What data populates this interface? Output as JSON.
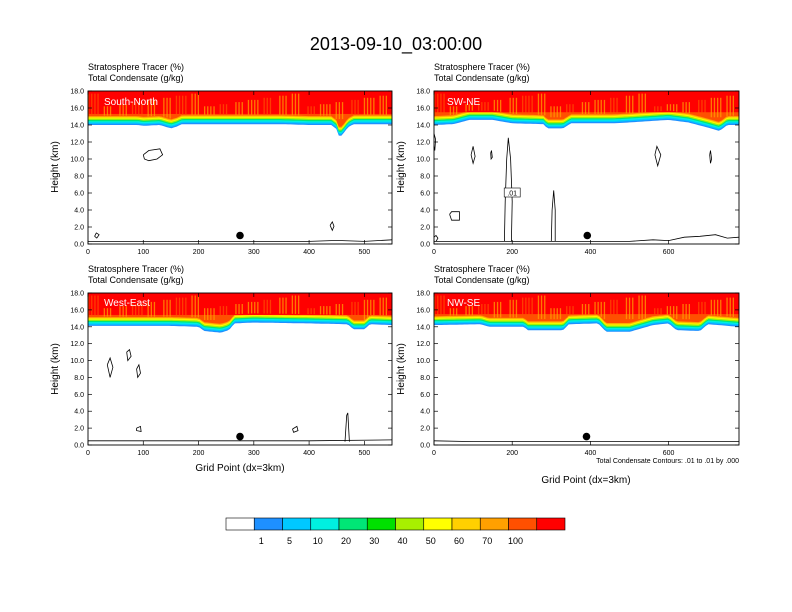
{
  "title": "2013-09-10_03:00:00",
  "palette": [
    "#ffffff",
    "#1e90ff",
    "#00c8ff",
    "#00f0e0",
    "#00e676",
    "#00e000",
    "#a8f000",
    "#ffff00",
    "#ffd000",
    "#ffa000",
    "#ff5000",
    "#ff0000"
  ],
  "contour_color": "#000000",
  "marker_color": "#000000",
  "chart_data": [
    {
      "type": "heatmap",
      "panel": "South-North",
      "subtitle_1": "Stratosphere Tracer   (%)",
      "subtitle_2": "Total Condensate   (g/kg)",
      "ylabel": "Height (km)",
      "xlabel": "",
      "xlim": [
        0,
        550
      ],
      "ylim": [
        0,
        18
      ],
      "xticks": [
        "0",
        "100",
        "200",
        "300",
        "400",
        "500"
      ],
      "xtick_values": [
        0,
        100,
        200,
        300,
        400,
        500
      ],
      "yticks": [
        "0.0",
        "2.0",
        "4.0",
        "6.0",
        "8.0",
        "10.0",
        "12.0",
        "14.0",
        "16.0",
        "18.0"
      ],
      "ytick_values": [
        0,
        2,
        4,
        6,
        8,
        10,
        12,
        14,
        16,
        18
      ],
      "tracer_top_100_km": 15.3,
      "tropopause_km": [
        [
          0,
          14.0
        ],
        [
          90,
          14.0
        ],
        [
          100,
          13.9
        ],
        [
          130,
          14.0
        ],
        [
          150,
          13.6
        ],
        [
          160,
          13.8
        ],
        [
          170,
          14.1
        ],
        [
          250,
          14.1
        ],
        [
          300,
          14.1
        ],
        [
          350,
          14.1
        ],
        [
          400,
          14.0
        ],
        [
          440,
          14.0
        ],
        [
          450,
          13.5
        ],
        [
          455,
          12.5
        ],
        [
          462,
          13.0
        ],
        [
          470,
          13.7
        ],
        [
          480,
          14.1
        ],
        [
          550,
          14.1
        ]
      ],
      "condensate_contours": [
        [
          [
            100,
            10.5
          ],
          [
            110,
            11.0
          ],
          [
            130,
            11.2
          ],
          [
            135,
            10.5
          ],
          [
            125,
            10.0
          ],
          [
            110,
            9.8
          ],
          [
            102,
            10.0
          ],
          [
            100,
            10.5
          ]
        ],
        [
          [
            12,
            0.9
          ],
          [
            15,
            1.3
          ],
          [
            20,
            1.1
          ],
          [
            16,
            0.7
          ],
          [
            12,
            0.9
          ]
        ],
        [
          [
            438,
            2.2
          ],
          [
            442,
            2.6
          ],
          [
            445,
            2.1
          ],
          [
            442,
            1.6
          ],
          [
            438,
            2.2
          ]
        ],
        [
          [
            0,
            0.3
          ],
          [
            10,
            0.3
          ],
          [
            20,
            0.3
          ],
          [
            40,
            0.3
          ],
          [
            60,
            0.3
          ],
          [
            100,
            0.3
          ],
          [
            200,
            0.3
          ],
          [
            300,
            0.3
          ],
          [
            400,
            0.3
          ],
          [
            440,
            0.4
          ],
          [
            460,
            0.4
          ],
          [
            500,
            0.3
          ],
          [
            550,
            0.5
          ]
        ]
      ],
      "marker": {
        "x": 275,
        "y": 1.0
      },
      "label": ""
    },
    {
      "type": "heatmap",
      "panel": "SW-NE",
      "subtitle_1": "Stratosphere Tracer   (%)",
      "subtitle_2": "Total Condensate   (g/kg)",
      "ylabel": "Height (km)",
      "xlabel": "",
      "xlim": [
        0,
        780
      ],
      "ylim": [
        0,
        18
      ],
      "xticks": [
        "0",
        "200",
        "400",
        "600"
      ],
      "xtick_values": [
        0,
        200,
        400,
        600
      ],
      "yticks": [
        "0.0",
        "2.0",
        "4.0",
        "6.0",
        "8.0",
        "10.0",
        "12.0",
        "14.0",
        "16.0",
        "18.0"
      ],
      "ytick_values": [
        0,
        2,
        4,
        6,
        8,
        10,
        12,
        14,
        16,
        18
      ],
      "tracer_top_100_km": 15.5,
      "tropopause_km": [
        [
          0,
          14.0
        ],
        [
          50,
          14.1
        ],
        [
          90,
          14.6
        ],
        [
          150,
          14.6
        ],
        [
          200,
          14.2
        ],
        [
          280,
          14.1
        ],
        [
          290,
          13.6
        ],
        [
          330,
          13.6
        ],
        [
          350,
          14.2
        ],
        [
          400,
          14.2
        ],
        [
          460,
          14.2
        ],
        [
          500,
          14.3
        ],
        [
          600,
          14.6
        ],
        [
          650,
          14.3
        ],
        [
          700,
          13.7
        ],
        [
          730,
          13.3
        ],
        [
          750,
          14.0
        ],
        [
          780,
          14.0
        ]
      ],
      "condensate_contours": [
        [
          [
            180,
            0.3
          ],
          [
            182,
            5.0
          ],
          [
            186,
            10.0
          ],
          [
            190,
            12.5
          ],
          [
            196,
            10.0
          ],
          [
            200,
            5.0
          ],
          [
            198,
            0.3
          ]
        ],
        [
          [
            300,
            0.3
          ],
          [
            302,
            4.0
          ],
          [
            306,
            6.3
          ],
          [
            310,
            4.0
          ],
          [
            310,
            0.3
          ]
        ],
        [
          [
            95,
            10.5
          ],
          [
            100,
            11.5
          ],
          [
            105,
            10.3
          ],
          [
            100,
            9.5
          ],
          [
            95,
            10.5
          ]
        ],
        [
          [
            145,
            10.7
          ],
          [
            147,
            11.0
          ],
          [
            149,
            10.2
          ],
          [
            146,
            10.0
          ],
          [
            145,
            10.7
          ]
        ],
        [
          [
            40,
            3.5
          ],
          [
            45,
            3.8
          ],
          [
            65,
            3.8
          ],
          [
            65,
            2.8
          ],
          [
            45,
            2.8
          ],
          [
            40,
            3.5
          ]
        ],
        [
          [
            565,
            10.5
          ],
          [
            570,
            11.5
          ],
          [
            580,
            10.5
          ],
          [
            572,
            9.2
          ],
          [
            565,
            10.5
          ]
        ],
        [
          [
            705,
            10.5
          ],
          [
            707,
            11.0
          ],
          [
            710,
            10.0
          ],
          [
            707,
            9.5
          ],
          [
            705,
            10.5
          ]
        ],
        [
          [
            0,
            13.0
          ],
          [
            4,
            12.3
          ],
          [
            2,
            11.0
          ],
          [
            0,
            11.5
          ]
        ],
        [
          [
            0,
            0.8
          ],
          [
            5,
            1.0
          ],
          [
            10,
            0.7
          ],
          [
            5,
            0.3
          ]
        ],
        [
          [
            0,
            0.3
          ],
          [
            100,
            0.3
          ],
          [
            300,
            0.3
          ],
          [
            500,
            0.3
          ],
          [
            560,
            0.5
          ],
          [
            600,
            0.4
          ],
          [
            640,
            0.8
          ],
          [
            680,
            0.9
          ],
          [
            720,
            1.1
          ],
          [
            750,
            0.7
          ],
          [
            780,
            0.8
          ]
        ]
      ],
      "marker": {
        "x": 392,
        "y": 1.0
      },
      "label": ".01",
      "label_pos": {
        "x": 200,
        "y": 6.0
      }
    },
    {
      "type": "heatmap",
      "panel": "West-East",
      "subtitle_1": "Stratosphere Tracer   (%)",
      "subtitle_2": "Total Condensate   (g/kg)",
      "ylabel": "Height (km)",
      "xlabel": "Grid Point (dx=3km)",
      "xlim": [
        0,
        550
      ],
      "ylim": [
        0,
        18
      ],
      "xticks": [
        "0",
        "100",
        "200",
        "300",
        "400",
        "500"
      ],
      "xtick_values": [
        0,
        100,
        200,
        300,
        400,
        500
      ],
      "yticks": [
        "0.0",
        "2.0",
        "4.0",
        "6.0",
        "8.0",
        "10.0",
        "12.0",
        "14.0",
        "16.0",
        "18.0"
      ],
      "ytick_values": [
        0,
        2,
        4,
        6,
        8,
        10,
        12,
        14,
        16,
        18
      ],
      "tracer_top_100_km": 15.4,
      "tropopause_km": [
        [
          0,
          14.1
        ],
        [
          150,
          14.1
        ],
        [
          200,
          14.0
        ],
        [
          210,
          13.5
        ],
        [
          240,
          13.3
        ],
        [
          255,
          13.6
        ],
        [
          265,
          14.4
        ],
        [
          300,
          14.5
        ],
        [
          400,
          14.4
        ],
        [
          470,
          14.3
        ],
        [
          480,
          13.7
        ],
        [
          500,
          13.7
        ],
        [
          510,
          14.3
        ],
        [
          550,
          14.2
        ]
      ],
      "condensate_contours": [
        [
          [
            35,
            9.5
          ],
          [
            40,
            10.3
          ],
          [
            45,
            9.2
          ],
          [
            40,
            8.0
          ],
          [
            35,
            9.5
          ]
        ],
        [
          [
            70,
            11.0
          ],
          [
            75,
            11.3
          ],
          [
            78,
            10.5
          ],
          [
            72,
            10.0
          ],
          [
            70,
            11.0
          ]
        ],
        [
          [
            88,
            9.0
          ],
          [
            92,
            9.5
          ],
          [
            95,
            8.5
          ],
          [
            90,
            8.0
          ],
          [
            88,
            9.0
          ]
        ],
        [
          [
            88,
            2.0
          ],
          [
            95,
            2.2
          ],
          [
            96,
            1.6
          ],
          [
            88,
            1.7
          ],
          [
            88,
            2.0
          ]
        ],
        [
          [
            370,
            1.9
          ],
          [
            378,
            2.2
          ],
          [
            380,
            1.7
          ],
          [
            372,
            1.5
          ],
          [
            370,
            1.9
          ]
        ],
        [
          [
            465,
            0.4
          ],
          [
            468,
            3.5
          ],
          [
            470,
            3.8
          ],
          [
            473,
            0.4
          ]
        ],
        [
          [
            0,
            0.5
          ],
          [
            100,
            0.5
          ],
          [
            200,
            0.5
          ],
          [
            300,
            0.5
          ],
          [
            400,
            0.5
          ],
          [
            550,
            0.6
          ]
        ]
      ],
      "marker": {
        "x": 275,
        "y": 1.0
      },
      "label": ""
    },
    {
      "type": "heatmap",
      "panel": "NW-SE",
      "subtitle_1": "Stratosphere Tracer   (%)",
      "subtitle_2": "Total Condensate   (g/kg)",
      "ylabel": "Height (km)",
      "xlabel": "Grid Point (dx=3km)",
      "xlim": [
        0,
        780
      ],
      "ylim": [
        0,
        18
      ],
      "xticks": [
        "0",
        "200",
        "400",
        "600"
      ],
      "xtick_values": [
        0,
        200,
        400,
        600
      ],
      "yticks": [
        "0.0",
        "2.0",
        "4.0",
        "6.0",
        "8.0",
        "10.0",
        "12.0",
        "14.0",
        "16.0",
        "18.0"
      ],
      "ytick_values": [
        0,
        2,
        4,
        6,
        8,
        10,
        12,
        14,
        16,
        18
      ],
      "tracer_top_100_km": 15.5,
      "tropopause_km": [
        [
          0,
          14.2
        ],
        [
          120,
          14.3
        ],
        [
          140,
          14.0
        ],
        [
          230,
          14.0
        ],
        [
          240,
          13.6
        ],
        [
          330,
          13.6
        ],
        [
          345,
          14.3
        ],
        [
          420,
          14.4
        ],
        [
          440,
          13.4
        ],
        [
          480,
          13.4
        ],
        [
          500,
          13.4
        ],
        [
          560,
          14.2
        ],
        [
          600,
          14.4
        ],
        [
          620,
          13.6
        ],
        [
          680,
          13.5
        ],
        [
          700,
          14.3
        ],
        [
          780,
          14.0
        ]
      ],
      "condensate_contours": [
        [
          [
            0,
            0.5
          ],
          [
            100,
            0.4
          ],
          [
            200,
            0.4
          ],
          [
            300,
            0.4
          ],
          [
            400,
            0.4
          ],
          [
            500,
            0.4
          ],
          [
            600,
            0.4
          ],
          [
            700,
            0.4
          ],
          [
            780,
            0.4
          ]
        ]
      ],
      "marker": {
        "x": 390,
        "y": 1.0
      },
      "label": ""
    }
  ],
  "footnote": "Total Condensate Contours: .01 to .01 by .000",
  "colorbar": {
    "labels": [
      "1",
      "5",
      "10",
      "20",
      "30",
      "40",
      "50",
      "60",
      "70",
      "100"
    ],
    "colors": [
      "#ffffff",
      "#1e90ff",
      "#00c8ff",
      "#00f0e0",
      "#00e676",
      "#00e000",
      "#a8f000",
      "#ffff00",
      "#ffd000",
      "#ffa000",
      "#ff5000",
      "#ff0000"
    ]
  }
}
